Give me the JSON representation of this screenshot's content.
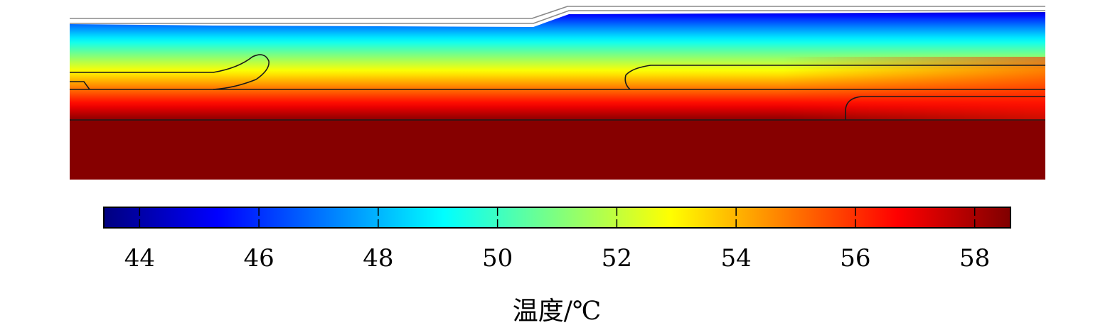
{
  "chart_data": {
    "type": "heatmap",
    "title": "",
    "colorbar": {
      "label": "温度/℃",
      "range": [
        43.4,
        58.6
      ],
      "ticks": [
        44,
        46,
        48,
        50,
        52,
        54,
        56,
        58
      ],
      "tick_labels": [
        "44",
        "46",
        "48",
        "50",
        "52",
        "54",
        "56",
        "58"
      ],
      "colormap": "jet",
      "orientation": "horizontal",
      "placement": "bottom"
    },
    "field": {
      "quantity": "temperature",
      "top_value": 44.5,
      "bottom_value": 58.5,
      "note": "temperature increases from top surface to bottom layer"
    },
    "colors": {
      "jet_stops": [
        "#00007f",
        "#0000ff",
        "#007fff",
        "#00ffff",
        "#7fff7f",
        "#ffff00",
        "#ff7f00",
        "#ff0000",
        "#7f0000"
      ],
      "boundary": "#1a1a1a",
      "top_surface": "#a0a0a0"
    }
  }
}
